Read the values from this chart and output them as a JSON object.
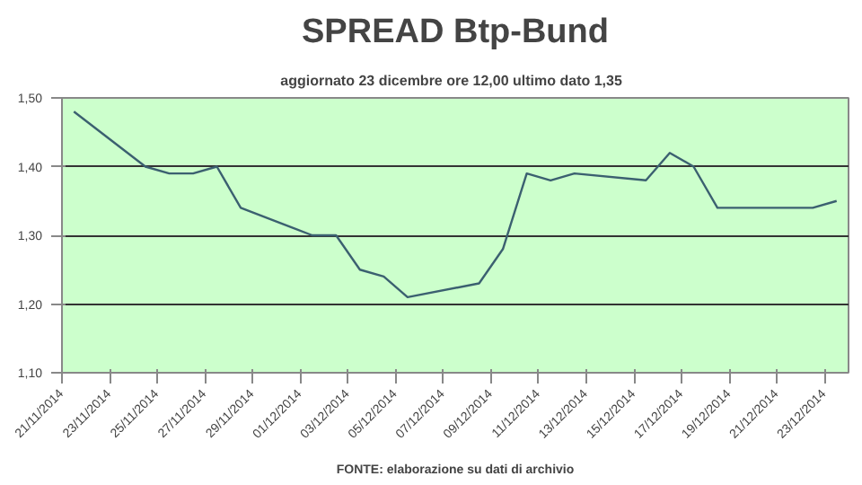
{
  "chart_data": {
    "type": "line",
    "title": "SPREAD Btp-Bund",
    "subtitle": "aggiornato 23 dicembre ore 12,00  ultimo dato  1,35",
    "annotations": [
      "FONTE: elaborazione su dati di archivio"
    ],
    "x": [
      "2014-11-21T12:00",
      "2014-11-24T12:00",
      "2014-11-25T12:00",
      "2014-11-26T12:00",
      "2014-11-27T12:00",
      "2014-11-28T12:00",
      "2014-12-01T12:00",
      "2014-12-02T12:00",
      "2014-12-03T12:00",
      "2014-12-04T12:00",
      "2014-12-05T12:00",
      "2014-12-08T12:00",
      "2014-12-09T12:00",
      "2014-12-10T12:00",
      "2014-12-11T12:00",
      "2014-12-12T12:00",
      "2014-12-15T12:00",
      "2014-12-16T12:00",
      "2014-12-17T12:00",
      "2014-12-18T12:00",
      "2014-12-19T12:00",
      "2014-12-22T12:00",
      "2014-12-23T12:00"
    ],
    "series": [
      {
        "color": "#3b6070",
        "values": [
          1.48,
          1.4,
          1.39,
          1.39,
          1.4,
          1.34,
          1.3,
          1.3,
          1.25,
          1.24,
          1.21,
          1.23,
          1.28,
          1.39,
          1.38,
          1.39,
          1.38,
          1.42,
          1.4,
          1.34,
          1.34,
          1.34,
          1.35
        ]
      }
    ],
    "xlim": [
      "2014-11-21",
      "2014-12-24"
    ],
    "xticks": [
      {
        "value": "2014-11-21",
        "label": "21/11/2014"
      },
      {
        "value": "2014-11-23",
        "label": "23/11/2014"
      },
      {
        "value": "2014-11-25",
        "label": "25/11/2014"
      },
      {
        "value": "2014-11-27",
        "label": "27/11/2014"
      },
      {
        "value": "2014-11-29",
        "label": "29/11/2014"
      },
      {
        "value": "2014-12-01",
        "label": "01/12/2014"
      },
      {
        "value": "2014-12-03",
        "label": "03/12/2014"
      },
      {
        "value": "2014-12-05",
        "label": "05/12/2014"
      },
      {
        "value": "2014-12-07",
        "label": "07/12/2014"
      },
      {
        "value": "2014-12-09",
        "label": "09/12/2014"
      },
      {
        "value": "2014-12-11",
        "label": "11/12/2014"
      },
      {
        "value": "2014-12-13",
        "label": "13/12/2014"
      },
      {
        "value": "2014-12-15",
        "label": "15/12/2014"
      },
      {
        "value": "2014-12-17",
        "label": "17/12/2014"
      },
      {
        "value": "2014-12-19",
        "label": "19/12/2014"
      },
      {
        "value": "2014-12-21",
        "label": "21/12/2014"
      },
      {
        "value": "2014-12-23",
        "label": "23/12/2014"
      }
    ],
    "ylim": [
      1.1,
      1.5
    ],
    "yticks": [
      {
        "value": 1.1,
        "label": "1,10"
      },
      {
        "value": 1.2,
        "label": "1,20"
      },
      {
        "value": 1.3,
        "label": "1,30"
      },
      {
        "value": 1.4,
        "label": "1,40"
      },
      {
        "value": 1.5,
        "label": "1,50"
      }
    ],
    "grid": "y",
    "marker": "none",
    "line_style": "solid"
  }
}
